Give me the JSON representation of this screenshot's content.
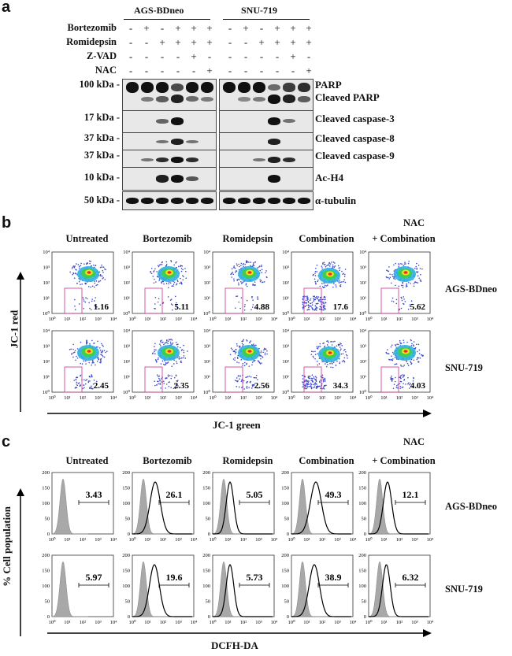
{
  "figure": {
    "panels": {
      "a": {
        "letter": "a",
        "cell_lines": [
          "AGS-BDneo",
          "SNU-719"
        ],
        "treatments": [
          {
            "name": "Bortezomib",
            "signs": [
              "-",
              "+",
              "-",
              "+",
              "+",
              "+",
              "-",
              "+",
              "-",
              "+",
              "+",
              "+"
            ]
          },
          {
            "name": "Romidepsin",
            "signs": [
              "-",
              "-",
              "+",
              "+",
              "+",
              "+",
              "-",
              "-",
              "+",
              "+",
              "+",
              "+"
            ]
          },
          {
            "name": "Z-VAD",
            "signs": [
              "-",
              "-",
              "-",
              "-",
              "+",
              "-",
              "-",
              "-",
              "-",
              "-",
              "+",
              "-"
            ]
          },
          {
            "name": "NAC",
            "signs": [
              "-",
              "-",
              "-",
              "-",
              "-",
              "+",
              "-",
              "-",
              "-",
              "-",
              "-",
              "+"
            ]
          }
        ],
        "rows": [
          {
            "mw": "100 kDa -",
            "protein": "PARP",
            "protein2": "Cleaved PARP"
          },
          {
            "mw": "17 kDa -",
            "protein": "Cleaved caspase-3"
          },
          {
            "mw": "37 kDa -",
            "protein": "Cleaved caspase-8"
          },
          {
            "mw": "37 kDa -",
            "protein": "Cleaved caspase-9"
          },
          {
            "mw": "10 kDa -",
            "protein": "Ac-H4"
          },
          {
            "mw": "50 kDa -",
            "protein": "α-tubulin"
          }
        ]
      },
      "b": {
        "letter": "b",
        "nac_label": "NAC",
        "columns": [
          "Untreated",
          "Bortezomib",
          "Romidepsin",
          "Combination",
          "+ Combination"
        ],
        "rows": [
          {
            "cell_line": "AGS-BDneo",
            "values": [
              "1.16",
              "5.11",
              "4.88",
              "17.6",
              "5.62"
            ]
          },
          {
            "cell_line": "SNU-719",
            "values": [
              "2.45",
              "2.35",
              "2.56",
              "34.3",
              "4.03"
            ]
          }
        ],
        "y_axis": "JC-1 red",
        "x_axis": "JC-1 green",
        "ticks": [
          "10⁰",
          "10¹",
          "10²",
          "10³",
          "10⁴"
        ]
      },
      "c": {
        "letter": "c",
        "nac_label": "NAC",
        "columns": [
          "Untreated",
          "Bortezomib",
          "Romidepsin",
          "Combination",
          "+ Combination"
        ],
        "rows": [
          {
            "cell_line": "AGS-BDneo",
            "values": [
              "3.43",
              "26.1",
              "5.05",
              "49.3",
              "12.1"
            ]
          },
          {
            "cell_line": "SNU-719",
            "values": [
              "5.97",
              "19.6",
              "5.73",
              "38.9",
              "6.32"
            ]
          }
        ],
        "y_axis": "% Cell population",
        "x_axis": "DCFH-DA",
        "y_ticks": [
          "0",
          "50",
          "100",
          "150",
          "200"
        ],
        "x_ticks": [
          "10⁰",
          "10¹",
          "10²",
          "10³",
          "10⁴"
        ]
      }
    }
  }
}
